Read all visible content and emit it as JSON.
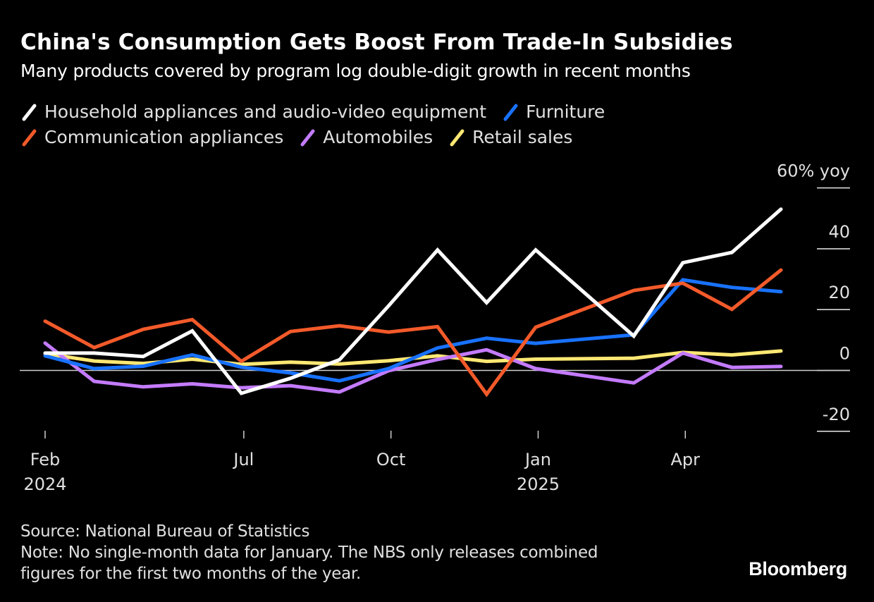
{
  "header": {
    "title": "China's Consumption Gets Boost From Trade-In Subsidies",
    "subtitle": "Many products covered by program log double-digit growth in recent months"
  },
  "legend": {
    "rows": [
      [
        {
          "label": "Household appliances and audio-video equipment",
          "series": 0
        },
        {
          "label": "Furniture",
          "series": 1
        }
      ],
      [
        {
          "label": "Communication appliances",
          "series": 2
        },
        {
          "label": "Automobiles",
          "series": 3
        },
        {
          "label": "Retail sales",
          "series": 4
        }
      ]
    ]
  },
  "footer": {
    "source": "Source: National Bureau of Statistics",
    "note_line1": "Note: No single-month data for January. The NBS only releases combined",
    "note_line2": "figures for the first two months of the year.",
    "brand": "Bloomberg"
  },
  "chart_data": {
    "type": "line",
    "title": "China's Consumption Gets Boost From Trade-In Subsidies",
    "subtitle": "Many products covered by program log double-digit growth in recent months",
    "xlabel": "",
    "ylabel": "% yoy",
    "y_unit_label": "60% yoy",
    "ylim": [
      -20,
      60
    ],
    "yticks": [
      60,
      40,
      20,
      0,
      -20
    ],
    "ytick_labels": [
      "60% yoy",
      "40",
      "20",
      "0",
      "-20"
    ],
    "y_axis_side": "right",
    "grid": false,
    "zero_line": true,
    "legend_position": "top-left",
    "x": [
      "2024-02",
      "2024-03",
      "2024-04",
      "2024-05",
      "2024-06",
      "2024-07",
      "2024-08",
      "2024-09",
      "2024-10",
      "2024-11",
      "2024-12",
      "2025-02",
      "2025-03",
      "2025-04",
      "2025-05"
    ],
    "x_month_index": [
      0,
      1,
      2,
      3,
      4,
      5,
      6,
      7,
      8,
      9,
      10,
      12,
      13,
      14,
      15
    ],
    "xticks": [
      {
        "label": "Feb",
        "sublabel": "2024",
        "month_index": 0
      },
      {
        "label": "Jul",
        "sublabel": "",
        "month_index": 4.05
      },
      {
        "label": "Oct",
        "sublabel": "",
        "month_index": 7.05
      },
      {
        "label": "Jan",
        "sublabel": "2025",
        "month_index": 10.05
      },
      {
        "label": "Apr",
        "sublabel": "",
        "month_index": 13.05
      }
    ],
    "x_month_range": [
      0,
      15
    ],
    "series": [
      {
        "name": "Household appliances and audio-video equipment",
        "color": "#ffffff",
        "values": [
          5.7,
          5.7,
          4.6,
          13.0,
          -7.5,
          -2.6,
          3.5,
          21.2,
          39.6,
          22.3,
          39.6,
          11.3,
          35.4,
          38.8,
          53.0
        ]
      },
      {
        "name": "Furniture",
        "color": "#1872ff",
        "values": [
          4.8,
          0.6,
          1.4,
          5.1,
          1.1,
          -0.8,
          -3.4,
          0.6,
          7.4,
          10.6,
          8.9,
          11.7,
          29.8,
          27.3,
          25.9
        ]
      },
      {
        "name": "Communication appliances",
        "color": "#f35a2a",
        "values": [
          16.2,
          7.5,
          13.5,
          16.7,
          3.0,
          12.8,
          14.7,
          12.6,
          14.4,
          -7.8,
          14.2,
          26.3,
          28.7,
          20.1,
          33.0
        ]
      },
      {
        "name": "Automobiles",
        "color": "#c47bff",
        "values": [
          9.0,
          -3.6,
          -5.4,
          -4.4,
          -5.7,
          -5.0,
          -7.1,
          -0.1,
          3.6,
          6.8,
          0.6,
          -4.1,
          5.7,
          1.0,
          1.3
        ]
      },
      {
        "name": "Retail sales",
        "color": "#ffe873",
        "values": [
          5.5,
          3.1,
          2.3,
          3.7,
          2.0,
          2.7,
          2.1,
          3.2,
          4.8,
          3.0,
          3.7,
          4.0,
          5.9,
          5.1,
          6.4
        ]
      }
    ]
  }
}
